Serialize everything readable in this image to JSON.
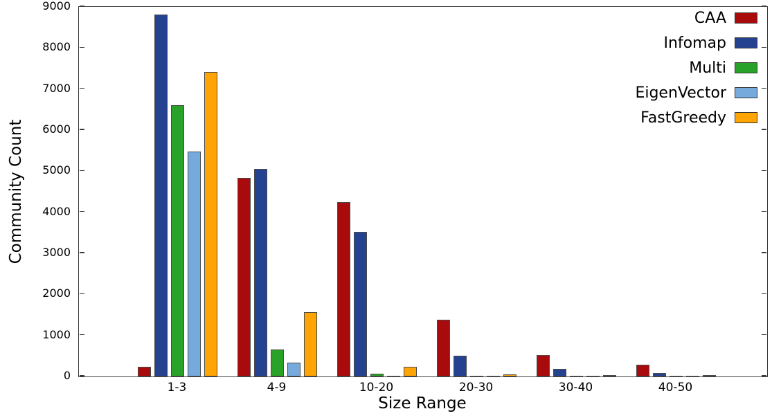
{
  "chart_data": {
    "type": "bar",
    "title": "",
    "xlabel": "Size Range",
    "ylabel": "Community Count",
    "categories": [
      "1-3",
      "4-9",
      "10-20",
      "20-30",
      "30-40",
      "40-50"
    ],
    "series": [
      {
        "name": "CAA",
        "color": "#a90b0d",
        "values": [
          240,
          4840,
          4250,
          1390,
          530,
          290
        ]
      },
      {
        "name": "Infomap",
        "color": "#254291",
        "values": [
          8810,
          5050,
          3530,
          510,
          190,
          90
        ]
      },
      {
        "name": "Multi",
        "color": "#28a228",
        "values": [
          6610,
          650,
          60,
          20,
          15,
          10
        ]
      },
      {
        "name": "EigenVector",
        "color": "#76aadd",
        "values": [
          5480,
          340,
          20,
          5,
          5,
          5
        ]
      },
      {
        "name": "FastGreedy",
        "color": "#ffa405",
        "values": [
          7420,
          1560,
          230,
          50,
          30,
          30
        ]
      }
    ],
    "ylim": [
      0,
      9000
    ],
    "ytick_step": 1000,
    "ytick_labels": [
      "0",
      "1000",
      "2000",
      "3000",
      "4000",
      "5000",
      "6000",
      "7000",
      "8000",
      "9000"
    ],
    "grid": false,
    "legend_position": "top-right",
    "legend_frame": false,
    "bar_edge_color": "#4a4a4a",
    "axis_color": "#3c3c3c"
  }
}
